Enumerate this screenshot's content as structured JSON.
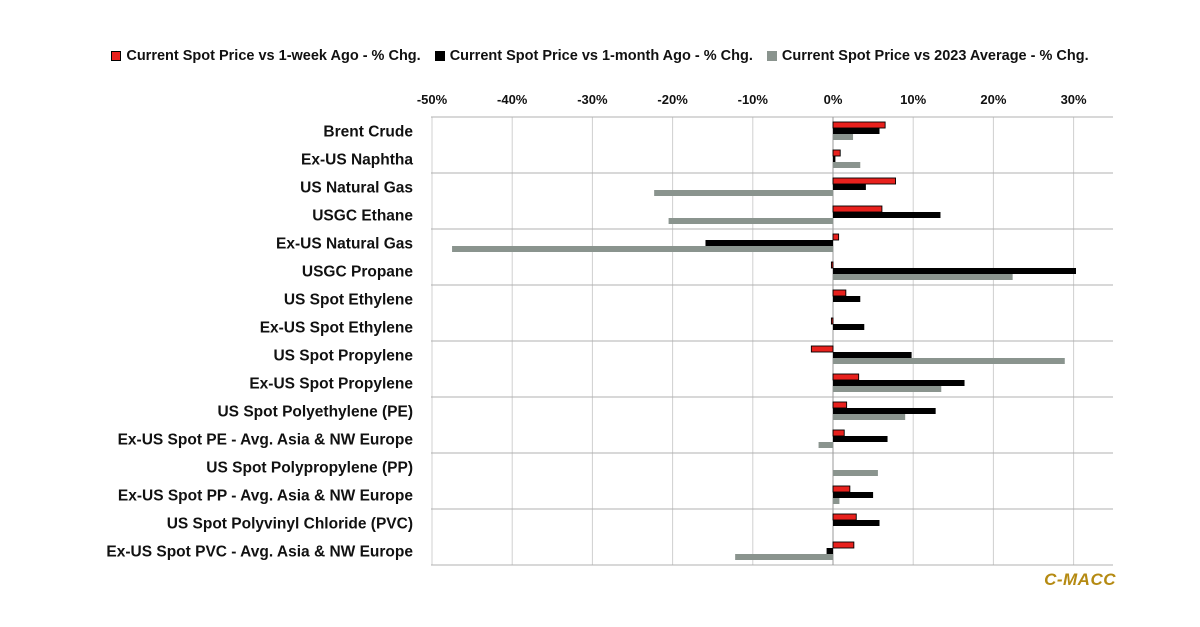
{
  "legend_labels": [
    "Current Spot Price vs 1-week Ago - % Chg.",
    "Current Spot Price vs 1-month Ago - % Chg.",
    "Current Spot Price vs 2023 Average - % Chg."
  ],
  "watermark": "C-MACC",
  "colors": {
    "week": "#e8211d",
    "month": "#000000",
    "avg": "#8a948e",
    "grid": "#d0d0d0",
    "watermark": "#b58a12"
  },
  "chart_data": {
    "type": "bar",
    "orientation": "horizontal",
    "title": "",
    "xlabel": "",
    "ylabel": "",
    "xlim": [
      -0.5,
      0.35
    ],
    "x_ticks": [
      -0.5,
      -0.4,
      -0.3,
      -0.2,
      -0.1,
      0,
      0.1,
      0.2,
      0.3
    ],
    "x_tick_labels": [
      "-50%",
      "-40%",
      "-30%",
      "-20%",
      "-10%",
      "0%",
      "10%",
      "20%",
      "30%"
    ],
    "x_axis_position": "top",
    "grid": true,
    "legend_position": "top",
    "categories": [
      "Brent Crude",
      "Ex-US Naphtha",
      "US Natural Gas",
      "USGC Ethane",
      "Ex-US Natural Gas",
      "USGC Propane",
      "US Spot Ethylene",
      "Ex-US Spot Ethylene",
      "US Spot Propylene",
      "Ex-US Spot Propylene",
      "US Spot Polyethylene (PE)",
      "Ex-US Spot PE - Avg. Asia & NW Europe",
      "US Spot Polypropylene (PP)",
      "Ex-US Spot PP - Avg. Asia & NW Europe",
      "US Spot Polyvinyl Chloride (PVC)",
      "Ex-US Spot PVC - Avg. Asia & NW Europe"
    ],
    "series": [
      {
        "name": "Current Spot Price vs 1-week Ago - % Chg.",
        "values": [
          0.065,
          0.009,
          0.078,
          0.061,
          0.007,
          -0.002,
          0.016,
          -0.002,
          -0.027,
          0.032,
          0.017,
          0.014,
          0,
          0.021,
          0.029,
          0.026
        ]
      },
      {
        "name": "Current Spot Price vs 1-month Ago - % Chg.",
        "values": [
          0.058,
          0.003,
          0.041,
          0.134,
          -0.159,
          0.303,
          0.034,
          0.039,
          0.098,
          0.164,
          0.128,
          0.068,
          0,
          0.05,
          0.058,
          -0.008
        ]
      },
      {
        "name": "Current Spot Price vs 2023 Average - % Chg.",
        "values": [
          0.025,
          0.034,
          -0.223,
          -0.205,
          -0.475,
          0.224,
          0,
          0,
          0.289,
          0.135,
          0.09,
          -0.018,
          0.056,
          0.008,
          0,
          -0.122
        ]
      }
    ]
  }
}
